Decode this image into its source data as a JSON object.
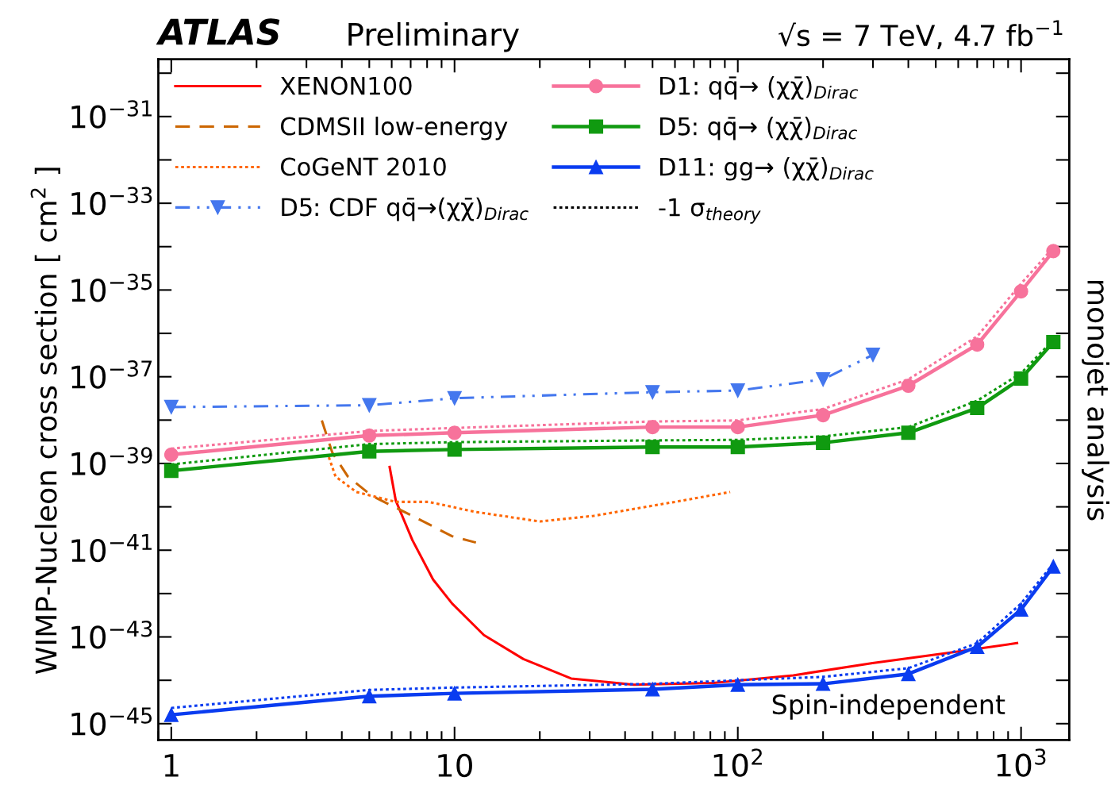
{
  "chart_data": {
    "type": "line",
    "title": "ATLAS",
    "subtitle": "Preliminary",
    "ylabel": "WIMP-Nucleon cross section [ cm$^{2}$ ]",
    "log": "xy",
    "xlim": [
      0.9,
      1480
    ],
    "ylim": [
      4.2e-46,
      2.1e-30
    ],
    "xticks": [
      1,
      10,
      {
        "value": 100,
        "label": "10$^{2}$"
      },
      {
        "value": 1000,
        "label": "10$^{3}$"
      }
    ],
    "yticks": [
      {
        "value": 1e-45,
        "label": "10$^{−45}$"
      },
      {
        "value": 1e-43,
        "label": "10$^{−43}$"
      },
      {
        "value": 1e-41,
        "label": "10$^{−41}$"
      },
      {
        "value": 1e-39,
        "label": "10$^{−39}$"
      },
      {
        "value": 1e-37,
        "label": "10$^{−37}$"
      },
      {
        "value": 1e-35,
        "label": "10$^{−35}$"
      },
      {
        "value": 1e-33,
        "label": "10$^{−33}$"
      },
      {
        "value": 1e-31,
        "label": "10$^{−31}$"
      }
    ],
    "grid": false,
    "legend": "top",
    "annotations": [
      "√s = 7 TeV, 4.7 fb$^{−1}$",
      "Spin-independent",
      "monojet analysis"
    ],
    "series": [
      {
        "name": "XENON100",
        "color": "#ff0000",
        "line_style": "solid",
        "marker": "none",
        "x": [
          5.9,
          6.2,
          7.1,
          8.4,
          9.8,
          12.7,
          17.5,
          25.8,
          43,
          82,
          157,
          299,
          570,
          968
        ],
        "values": [
          8.3e-40,
          1.4e-40,
          1.7e-41,
          2.1e-42,
          5.9e-43,
          1.1e-43,
          3.1e-44,
          1.1e-44,
          7.9e-45,
          8.7e-45,
          1.3e-44,
          2.5e-44,
          4.4e-44,
          7.2e-44
        ]
      },
      {
        "name": "CDMSII low-energy",
        "color": "#cc6600",
        "line_style": "dashed",
        "marker": "none",
        "x": [
          3.4,
          3.7,
          4.2,
          5.1,
          7.1,
          9.8,
          11.9
        ],
        "values": [
          9.8e-39,
          1.8e-39,
          5e-40,
          1.8e-40,
          6.2e-41,
          2.1e-41,
          1.5e-41
        ]
      },
      {
        "name": "CoGeNT 2010",
        "color": "#ff6600",
        "line_style": "dotted",
        "marker": "none",
        "x": [
          3.6,
          3.8,
          4.5,
          6.2,
          8.1,
          11.9,
          20,
          31,
          60,
          94
        ],
        "values": [
          1.4e-39,
          5e-40,
          2.2e-40,
          1.3e-40,
          1.3e-40,
          7.6e-41,
          4.6e-41,
          6.2e-41,
          1.3e-40,
          2.2e-40
        ]
      },
      {
        "name": "D5: CDF qq̄→(χχ̄)$_{Dirac}$",
        "color": "#4477ee",
        "line_style": "dashdot",
        "marker": "triangle_down",
        "x": [
          1,
          5,
          10,
          50,
          100,
          200,
          300
        ],
        "values": [
          2e-38,
          2.2e-38,
          3.2e-38,
          4.4e-38,
          4.8e-38,
          8.7e-38,
          3.2e-37
        ]
      },
      {
        "name": "D1: qq̄→ (χχ̄)$_{Dirac}$",
        "color": "#f7729b",
        "line_style": "solid",
        "marker": "circle",
        "x": [
          1,
          5,
          10,
          50,
          100,
          200,
          400,
          700,
          1000,
          1300
        ],
        "values": [
          1.6e-39,
          4.4e-39,
          5.1e-39,
          6.9e-39,
          6.9e-39,
          1.3e-38,
          6.2e-38,
          5.5e-37,
          9.3e-36,
          7.9e-35
        ]
      },
      {
        "name": "D5: qq̄→ (χχ̄)$_{Dirac}$",
        "color": "#109a10",
        "line_style": "solid",
        "marker": "square",
        "x": [
          1,
          5,
          10,
          50,
          100,
          200,
          400,
          700,
          1000,
          1300
        ],
        "values": [
          6.8e-40,
          1.9e-39,
          2.1e-39,
          2.4e-39,
          2.4e-39,
          3e-39,
          5.1e-39,
          1.9e-38,
          9.1e-38,
          6.3e-37
        ]
      },
      {
        "name": "D11: gg→ (χχ̄)$_{Dirac}$",
        "color": "#0a3cf0",
        "line_style": "solid",
        "marker": "triangle",
        "x": [
          1,
          5,
          10,
          50,
          100,
          200,
          400,
          700,
          1000,
          1300
        ],
        "values": [
          1.6e-45,
          4.3e-45,
          5e-45,
          6.2e-45,
          7.9e-45,
          8.3e-45,
          1.4e-44,
          5.9e-44,
          4.3e-43,
          4.2e-42
        ]
      },
      {
        "name": "-1 σ$_{theory}$",
        "color": "#000000",
        "line_style": "dotted",
        "marker": "none"
      },
      {
        "color": "#f7729b",
        "line_style": "dotted",
        "marker": "none",
        "x": [
          1,
          5,
          10,
          50,
          100,
          200,
          400,
          700,
          1000,
          1300
        ],
        "values": [
          2.2e-39,
          5.6e-39,
          6.6e-39,
          9.3e-39,
          9.8e-39,
          1.8e-38,
          8.7e-38,
          8.5e-37,
          1.4e-35,
          9.5e-35
        ]
      },
      {
        "color": "#109a10",
        "line_style": "dotted",
        "marker": "none",
        "x": [
          1,
          5,
          10,
          50,
          100,
          200,
          400,
          700,
          1000,
          1300
        ],
        "values": [
          9.5e-40,
          2.8e-39,
          3.1e-39,
          3.4e-39,
          3.5e-39,
          4.2e-39,
          6.9e-39,
          2.8e-38,
          1.2e-37,
          7.1e-37
        ]
      },
      {
        "color": "#0a3cf0",
        "line_style": "dotted",
        "marker": "none",
        "x": [
          1,
          5,
          10,
          50,
          100,
          200,
          400,
          700,
          1000,
          1300
        ],
        "values": [
          2.3e-45,
          6e-45,
          6.8e-45,
          8.3e-45,
          1e-44,
          1.2e-44,
          1.9e-44,
          7.2e-44,
          5.9e-43,
          4.9e-42
        ]
      }
    ]
  }
}
